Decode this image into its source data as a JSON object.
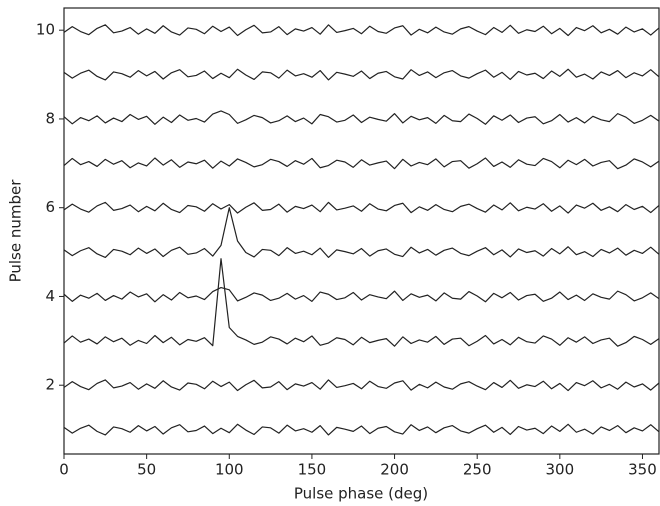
{
  "chart_data": {
    "type": "line",
    "x_label": "Pulse phase (deg)",
    "y_label": "Pulse number",
    "xlim": [
      0,
      360
    ],
    "ylim": [
      0.45,
      10.5
    ],
    "xticks": [
      0,
      50,
      100,
      150,
      200,
      250,
      300,
      350
    ],
    "yticks": [
      2,
      4,
      6,
      8,
      10
    ],
    "x": [
      0,
      5,
      10,
      15,
      20,
      25,
      30,
      35,
      40,
      45,
      50,
      55,
      60,
      65,
      70,
      75,
      80,
      85,
      90,
      95,
      100,
      105,
      110,
      115,
      120,
      125,
      130,
      135,
      140,
      145,
      150,
      155,
      160,
      165,
      170,
      175,
      180,
      185,
      190,
      195,
      200,
      205,
      210,
      215,
      220,
      225,
      230,
      235,
      240,
      245,
      250,
      255,
      260,
      265,
      270,
      275,
      280,
      285,
      290,
      295,
      300,
      305,
      310,
      315,
      320,
      325,
      330,
      335,
      340,
      345,
      350,
      355,
      360
    ],
    "series": [
      {
        "color": "#222222",
        "values": [
          1.05,
          0.92,
          1.03,
          1.1,
          0.96,
          0.88,
          1.06,
          1.02,
          0.94,
          1.09,
          0.97,
          1.07,
          0.9,
          1.04,
          1.11,
          0.95,
          0.98,
          1.08,
          0.91,
          1.03,
          0.93,
          1.12,
          0.99,
          0.89,
          1.06,
          1.04,
          0.92,
          1.1,
          0.97,
          1.02,
          0.94,
          1.09,
          0.88,
          1.05,
          1.01,
          0.96,
          1.08,
          0.91,
          1.03,
          1.07,
          0.95,
          0.9,
          1.11,
          0.98,
          1.06,
          0.93,
          1.04,
          1.09,
          0.97,
          0.92,
          1.02,
          1.1,
          0.94,
          1.05,
          0.89,
          1.07,
          0.99,
          1.03,
          0.91,
          1.08,
          0.96,
          1.12,
          0.94,
          1.01,
          0.9,
          1.06,
          0.98,
          1.09,
          0.93,
          1.04,
          0.97,
          1.11,
          0.95
        ]
      },
      {
        "color": "#222222",
        "values": [
          1.95,
          2.08,
          1.97,
          1.9,
          2.04,
          2.12,
          1.94,
          1.98,
          2.06,
          1.91,
          2.03,
          1.93,
          2.1,
          1.96,
          1.89,
          2.05,
          2.02,
          1.92,
          2.09,
          1.97,
          2.07,
          1.88,
          2.01,
          2.11,
          1.94,
          1.96,
          2.08,
          1.9,
          2.03,
          1.98,
          2.06,
          1.91,
          2.12,
          1.95,
          1.99,
          2.04,
          1.92,
          2.09,
          1.97,
          1.93,
          2.05,
          2.1,
          1.89,
          2.02,
          1.94,
          2.07,
          1.96,
          1.91,
          2.03,
          2.08,
          1.98,
          1.9,
          2.06,
          1.95,
          2.11,
          1.93,
          2.01,
          1.97,
          2.09,
          1.92,
          2.04,
          1.88,
          2.06,
          1.99,
          2.1,
          1.94,
          2.02,
          1.91,
          2.07,
          1.96,
          2.03,
          1.89,
          2.05
        ]
      },
      {
        "color": "#222222",
        "values": [
          2.95,
          3.11,
          2.97,
          3.04,
          2.93,
          3.09,
          2.98,
          3.06,
          2.9,
          3.01,
          2.94,
          3.12,
          2.96,
          3.08,
          2.91,
          3.03,
          2.99,
          3.07,
          2.89,
          4.85,
          3.3,
          3.1,
          3.02,
          2.92,
          2.97,
          3.09,
          3.04,
          2.93,
          3.06,
          2.98,
          3.11,
          2.9,
          2.95,
          3.07,
          3.03,
          2.91,
          3.08,
          2.96,
          3.01,
          3.05,
          2.88,
          3.09,
          2.94,
          3.02,
          2.97,
          3.1,
          2.92,
          3.04,
          3.06,
          2.89,
          2.99,
          3.12,
          2.93,
          3.03,
          2.91,
          3.08,
          2.98,
          2.95,
          3.11,
          3.04,
          2.9,
          3.07,
          2.97,
          3.09,
          2.94,
          3.02,
          3.06,
          2.88,
          2.96,
          3.1,
          3.03,
          2.92,
          3.05
        ]
      },
      {
        "color": "#222222",
        "values": [
          4.05,
          3.89,
          4.03,
          3.96,
          4.07,
          3.91,
          4.02,
          3.94,
          4.1,
          3.99,
          4.06,
          3.88,
          4.04,
          3.92,
          4.09,
          3.97,
          4.01,
          3.93,
          4.11,
          4.2,
          4.15,
          3.9,
          3.98,
          4.08,
          4.03,
          3.91,
          3.96,
          4.07,
          3.94,
          4.02,
          3.89,
          4.1,
          4.05,
          3.93,
          3.97,
          4.09,
          3.92,
          4.04,
          3.99,
          3.95,
          4.12,
          3.91,
          4.06,
          3.98,
          4.03,
          3.9,
          4.08,
          3.96,
          3.94,
          4.11,
          4.01,
          3.88,
          4.07,
          3.97,
          4.09,
          3.92,
          4.02,
          4.05,
          3.89,
          3.96,
          4.1,
          3.93,
          4.03,
          3.91,
          4.06,
          3.98,
          3.94,
          4.12,
          4.04,
          3.9,
          3.97,
          4.08,
          3.95
        ]
      },
      {
        "color": "#222222",
        "values": [
          5.05,
          4.92,
          5.03,
          5.1,
          4.96,
          4.88,
          5.06,
          5.02,
          4.94,
          5.09,
          4.97,
          5.07,
          4.9,
          5.04,
          5.11,
          4.95,
          4.98,
          5.08,
          4.91,
          5.15,
          6.0,
          5.25,
          4.99,
          4.89,
          5.06,
          5.04,
          4.92,
          5.1,
          4.97,
          5.02,
          4.94,
          5.09,
          4.88,
          5.05,
          5.01,
          4.96,
          5.08,
          4.91,
          5.03,
          5.07,
          4.95,
          4.9,
          5.11,
          4.98,
          5.06,
          4.93,
          5.04,
          5.09,
          4.97,
          4.92,
          5.02,
          5.1,
          4.94,
          5.05,
          4.89,
          5.07,
          4.99,
          5.03,
          4.91,
          5.08,
          4.96,
          5.12,
          4.94,
          5.01,
          4.9,
          5.06,
          4.98,
          5.09,
          4.93,
          5.04,
          4.97,
          5.11,
          4.95
        ]
      },
      {
        "color": "#222222",
        "values": [
          5.95,
          6.08,
          5.97,
          5.9,
          6.04,
          6.12,
          5.94,
          5.98,
          6.06,
          5.91,
          6.03,
          5.93,
          6.1,
          5.96,
          5.89,
          6.05,
          6.02,
          5.92,
          6.09,
          5.97,
          6.07,
          5.88,
          6.01,
          6.11,
          5.94,
          5.96,
          6.08,
          5.9,
          6.03,
          5.98,
          6.06,
          5.91,
          6.12,
          5.95,
          5.99,
          6.04,
          5.92,
          6.09,
          5.97,
          5.93,
          6.05,
          6.1,
          5.89,
          6.02,
          5.94,
          6.07,
          5.96,
          5.91,
          6.03,
          6.08,
          5.98,
          5.9,
          6.06,
          5.95,
          6.11,
          5.93,
          6.01,
          5.97,
          6.09,
          5.92,
          6.04,
          5.88,
          6.06,
          5.99,
          6.1,
          5.94,
          6.02,
          5.91,
          6.07,
          5.96,
          6.03,
          5.89,
          6.05
        ]
      },
      {
        "color": "#222222",
        "values": [
          6.95,
          7.11,
          6.97,
          7.04,
          6.93,
          7.09,
          6.98,
          7.06,
          6.9,
          7.01,
          6.94,
          7.12,
          6.96,
          7.08,
          6.91,
          7.03,
          6.99,
          7.07,
          6.89,
          7.05,
          6.94,
          7.1,
          7.02,
          6.92,
          6.97,
          7.09,
          7.04,
          6.93,
          7.06,
          6.98,
          7.11,
          6.9,
          6.95,
          7.07,
          7.03,
          6.91,
          7.08,
          6.96,
          7.01,
          7.05,
          6.88,
          7.09,
          6.94,
          7.02,
          6.97,
          7.1,
          6.92,
          7.04,
          7.06,
          6.89,
          6.99,
          7.12,
          6.93,
          7.03,
          6.91,
          7.08,
          6.98,
          6.95,
          7.11,
          7.04,
          6.9,
          7.07,
          6.97,
          7.09,
          6.94,
          7.02,
          7.06,
          6.88,
          6.96,
          7.1,
          7.03,
          6.92,
          7.05
        ]
      },
      {
        "color": "#222222",
        "values": [
          8.05,
          7.89,
          8.03,
          7.96,
          8.07,
          7.91,
          8.02,
          7.94,
          8.1,
          7.99,
          8.06,
          7.88,
          8.04,
          7.92,
          8.09,
          7.97,
          8.01,
          7.93,
          8.11,
          8.18,
          8.1,
          7.9,
          7.98,
          8.08,
          8.03,
          7.91,
          7.96,
          8.07,
          7.94,
          8.02,
          7.89,
          8.1,
          8.05,
          7.93,
          7.97,
          8.09,
          7.92,
          8.04,
          7.99,
          7.95,
          8.12,
          7.91,
          8.06,
          7.98,
          8.03,
          7.9,
          8.08,
          7.96,
          7.94,
          8.11,
          8.01,
          7.88,
          8.07,
          7.97,
          8.09,
          7.92,
          8.02,
          8.05,
          7.89,
          7.96,
          8.1,
          7.93,
          8.03,
          7.91,
          8.06,
          7.98,
          7.94,
          8.12,
          8.04,
          7.9,
          7.97,
          8.08,
          7.95
        ]
      },
      {
        "color": "#222222",
        "values": [
          9.05,
          8.92,
          9.03,
          9.1,
          8.96,
          8.88,
          9.06,
          9.02,
          8.94,
          9.09,
          8.97,
          9.07,
          8.9,
          9.04,
          9.11,
          8.95,
          8.98,
          9.08,
          8.91,
          9.03,
          8.93,
          9.12,
          8.99,
          8.89,
          9.06,
          9.04,
          8.92,
          9.1,
          8.97,
          9.02,
          8.94,
          9.09,
          8.88,
          9.05,
          9.01,
          8.96,
          9.08,
          8.91,
          9.03,
          9.07,
          8.95,
          8.9,
          9.11,
          8.98,
          9.06,
          8.93,
          9.04,
          9.09,
          8.97,
          8.92,
          9.02,
          9.1,
          8.94,
          9.05,
          8.89,
          9.07,
          8.99,
          9.03,
          8.91,
          9.08,
          8.96,
          9.12,
          8.94,
          9.01,
          8.9,
          9.06,
          8.98,
          9.09,
          8.93,
          9.04,
          8.97,
          9.11,
          8.95
        ]
      },
      {
        "color": "#222222",
        "values": [
          9.95,
          10.08,
          9.97,
          9.9,
          10.04,
          10.12,
          9.94,
          9.98,
          10.06,
          9.91,
          10.03,
          9.93,
          10.1,
          9.96,
          9.89,
          10.05,
          10.02,
          9.92,
          10.09,
          9.97,
          10.07,
          9.88,
          10.01,
          10.11,
          9.94,
          9.96,
          10.08,
          9.9,
          10.03,
          9.98,
          10.06,
          9.91,
          10.12,
          9.95,
          9.99,
          10.04,
          9.92,
          10.09,
          9.97,
          9.93,
          10.05,
          10.1,
          9.89,
          10.02,
          9.94,
          10.07,
          9.96,
          9.91,
          10.03,
          10.08,
          9.98,
          9.9,
          10.06,
          9.95,
          10.11,
          9.93,
          10.01,
          9.97,
          10.09,
          9.92,
          10.04,
          9.88,
          10.06,
          9.99,
          10.1,
          9.94,
          10.02,
          9.91,
          10.07,
          9.96,
          10.03,
          9.89,
          10.05
        ]
      }
    ]
  }
}
